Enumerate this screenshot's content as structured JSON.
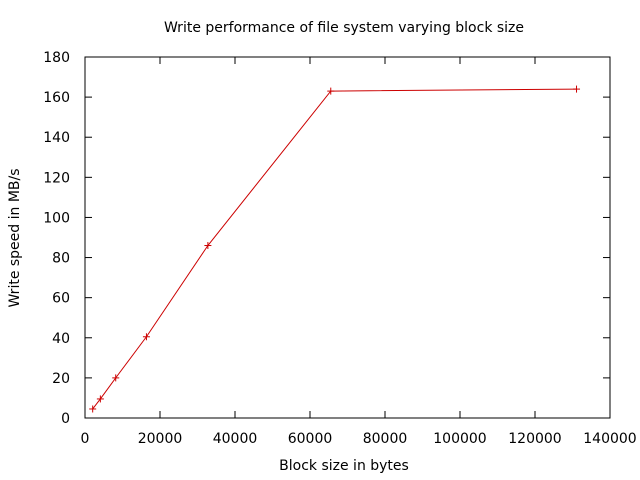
{
  "chart_data": {
    "type": "line",
    "title": "Write performance of file system varying block size",
    "xlabel": "Block size in bytes",
    "ylabel": "Write speed in MB/s",
    "xlim": [
      0,
      140000
    ],
    "ylim": [
      0,
      180
    ],
    "x_ticks": [
      0,
      20000,
      40000,
      60000,
      80000,
      100000,
      120000,
      140000
    ],
    "y_ticks": [
      0,
      20,
      40,
      60,
      80,
      100,
      120,
      140,
      160,
      180
    ],
    "grid": false,
    "legend": "none",
    "series": [
      {
        "color": "#cc0000",
        "marker": "plus",
        "x": [
          2048,
          4096,
          8192,
          16384,
          32768,
          65536,
          131072
        ],
        "y": [
          4.5,
          9.5,
          20,
          40.5,
          86,
          163,
          164
        ]
      }
    ]
  }
}
